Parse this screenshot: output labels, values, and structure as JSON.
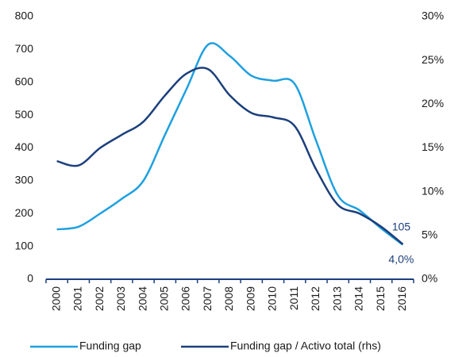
{
  "chart_data": {
    "type": "line",
    "categories": [
      "2000",
      "2001",
      "2002",
      "2003",
      "2004",
      "2005",
      "2006",
      "2007",
      "2008",
      "2009",
      "2010",
      "2011",
      "2012",
      "2013",
      "2014",
      "2015",
      "2016"
    ],
    "series": [
      {
        "name": "Funding gap",
        "color": "#1fa0e0",
        "values": [
          152,
          160,
          200,
          245,
          300,
          440,
          580,
          715,
          680,
          620,
          605,
          595,
          420,
          255,
          210,
          155,
          105
        ],
        "value_labels": [
          null,
          null,
          null,
          null,
          null,
          null,
          null,
          null,
          null,
          null,
          null,
          null,
          null,
          null,
          null,
          null,
          "105"
        ]
      },
      {
        "name": "Funding gap / Activo total (rhs)",
        "color": "#1c3f7c",
        "axis": "y2",
        "values": [
          13.5,
          13.0,
          15.0,
          16.5,
          18.0,
          21.0,
          23.5,
          24.0,
          21.0,
          19.0,
          18.5,
          17.5,
          12.5,
          8.5,
          7.5,
          6.0,
          4.0
        ],
        "value_labels": [
          null,
          null,
          null,
          null,
          null,
          null,
          null,
          null,
          null,
          null,
          null,
          null,
          null,
          null,
          null,
          null,
          "4,0%"
        ]
      }
    ],
    "ylim": [
      0,
      800
    ],
    "yticks": [
      0,
      100,
      200,
      300,
      400,
      500,
      600,
      700,
      800
    ],
    "y2lim": [
      0,
      30
    ],
    "y2ticks": [
      {
        "value": 0,
        "label": "0%"
      },
      {
        "value": 5,
        "label": "5%"
      },
      {
        "value": 10,
        "label": "10%"
      },
      {
        "value": 15,
        "label": "15%"
      },
      {
        "value": 20,
        "label": "20%"
      },
      {
        "value": 25,
        "label": "25%"
      },
      {
        "value": 30,
        "label": "30%"
      }
    ],
    "legend": "bottom"
  }
}
